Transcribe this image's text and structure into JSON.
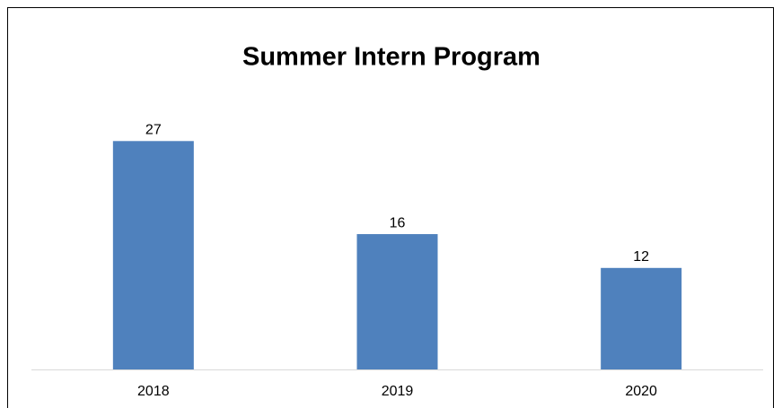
{
  "chart_data": {
    "type": "bar",
    "title": "Summer Intern Program",
    "categories": [
      "2018",
      "2019",
      "2020"
    ],
    "values": [
      27,
      16,
      12
    ],
    "color": "#4f81bd",
    "ylim": [
      0,
      30
    ]
  }
}
